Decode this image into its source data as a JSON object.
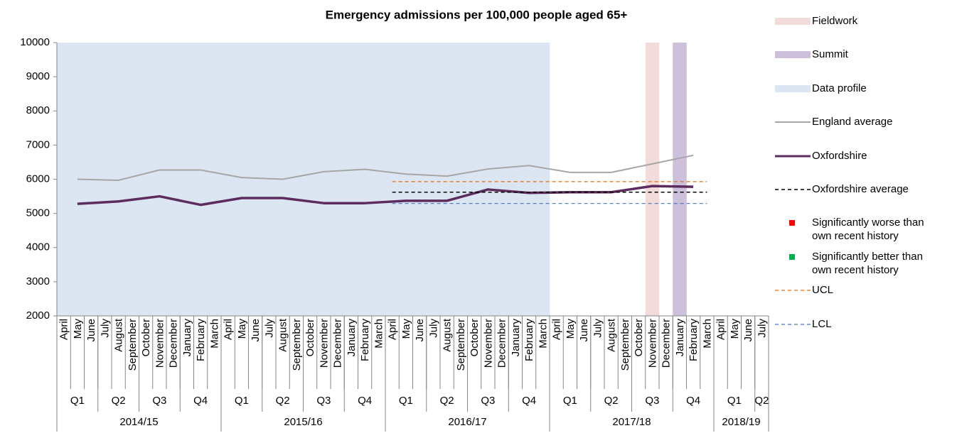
{
  "chart_data": {
    "type": "combo",
    "title": "Emergency admissions per 100,000 people aged 65+",
    "categories": [
      "April",
      "May",
      "June",
      "July",
      "August",
      "September",
      "October",
      "November",
      "December",
      "January",
      "February",
      "March",
      "April",
      "May",
      "June",
      "July",
      "August",
      "September",
      "October",
      "November",
      "December",
      "January",
      "February",
      "March",
      "April",
      "May",
      "June",
      "July",
      "August",
      "September",
      "October",
      "November",
      "December",
      "January",
      "February",
      "March",
      "April",
      "May",
      "June",
      "July",
      "August",
      "September",
      "October",
      "November",
      "December",
      "January",
      "February",
      "March",
      "April",
      "May",
      "June",
      "July"
    ],
    "x_groups": [
      {
        "span": 3,
        "labels": [
          "Q1",
          "Q2",
          "Q3",
          "Q4",
          "Q1",
          "Q2",
          "Q3",
          "Q4",
          "Q1",
          "Q2",
          "Q3",
          "Q4",
          "Q1",
          "Q2",
          "Q3",
          "Q4",
          "Q1",
          "Q2"
        ]
      },
      {
        "span": 12,
        "labels": [
          "2014/15",
          "2015/16",
          "2016/17",
          "2017/18",
          "2018/19"
        ]
      }
    ],
    "ylim": [
      2000,
      10000
    ],
    "yticks": [
      2000,
      3000,
      4000,
      5000,
      6000,
      7000,
      8000,
      9000,
      10000
    ],
    "grid": false,
    "connect_gaps": true,
    "legend": "right",
    "series": [
      {
        "name": "Fieldwork",
        "type": "bar",
        "color": "#f2dcdb",
        "values": [
          null,
          null,
          null,
          null,
          null,
          null,
          null,
          null,
          null,
          null,
          null,
          null,
          null,
          null,
          null,
          null,
          null,
          null,
          null,
          null,
          null,
          null,
          null,
          null,
          null,
          null,
          null,
          null,
          null,
          null,
          null,
          null,
          null,
          null,
          null,
          null,
          null,
          null,
          null,
          null,
          null,
          null,
          null,
          10000,
          null,
          null,
          null,
          null,
          null,
          null,
          null,
          null
        ]
      },
      {
        "name": "Summit",
        "type": "bar",
        "color": "#ccc0da",
        "values": [
          null,
          null,
          null,
          null,
          null,
          null,
          null,
          null,
          null,
          null,
          null,
          null,
          null,
          null,
          null,
          null,
          null,
          null,
          null,
          null,
          null,
          null,
          null,
          null,
          null,
          null,
          null,
          null,
          null,
          null,
          null,
          null,
          null,
          null,
          null,
          null,
          null,
          null,
          null,
          null,
          null,
          null,
          null,
          null,
          null,
          10000,
          null,
          null,
          null,
          null,
          null,
          null
        ]
      },
      {
        "name": "Data profile",
        "type": "bar",
        "color": "#dce6f2",
        "values": [
          10000,
          10000,
          10000,
          10000,
          10000,
          10000,
          10000,
          10000,
          10000,
          10000,
          10000,
          10000,
          10000,
          10000,
          10000,
          10000,
          10000,
          10000,
          10000,
          10000,
          10000,
          10000,
          10000,
          10000,
          10000,
          10000,
          10000,
          10000,
          10000,
          10000,
          10000,
          10000,
          10000,
          10000,
          10000,
          10000,
          null,
          null,
          null,
          null,
          null,
          null,
          null,
          null,
          null,
          null,
          null,
          null,
          null,
          null,
          null,
          null
        ]
      },
      {
        "name": "England average",
        "type": "line",
        "color": "#a6a6a6",
        "width": 2,
        "values": [
          null,
          6000,
          null,
          null,
          5970,
          null,
          null,
          6270,
          null,
          null,
          6270,
          null,
          null,
          6050,
          null,
          null,
          6000,
          null,
          null,
          6220,
          null,
          null,
          6290,
          null,
          null,
          6150,
          null,
          null,
          6090,
          null,
          null,
          6300,
          null,
          null,
          6400,
          null,
          null,
          6200,
          null,
          null,
          6200,
          null,
          null,
          6450,
          null,
          null,
          6700,
          null,
          null,
          null,
          null,
          null
        ]
      },
      {
        "name": "Oxfordshire",
        "type": "line",
        "color": "#5b2c5d",
        "width": 3.5,
        "values": [
          null,
          5280,
          null,
          null,
          5350,
          null,
          null,
          5500,
          null,
          null,
          5250,
          null,
          null,
          5450,
          null,
          null,
          5450,
          null,
          null,
          5300,
          null,
          null,
          5300,
          null,
          null,
          5370,
          null,
          null,
          5370,
          null,
          null,
          5700,
          null,
          null,
          5600,
          null,
          null,
          5620,
          null,
          null,
          5620,
          null,
          null,
          5800,
          null,
          null,
          5780,
          null,
          null,
          null,
          null,
          null
        ]
      },
      {
        "name": "Oxfordshire average",
        "type": "line",
        "color": "#000000",
        "width": 1.5,
        "dash": true,
        "values": [
          null,
          null,
          null,
          null,
          null,
          null,
          null,
          null,
          null,
          null,
          null,
          null,
          null,
          null,
          null,
          null,
          null,
          null,
          null,
          null,
          null,
          null,
          null,
          null,
          5620,
          5620,
          5620,
          5620,
          5620,
          5620,
          5620,
          5620,
          5620,
          5620,
          5620,
          5620,
          5620,
          5620,
          5620,
          5620,
          5620,
          5620,
          5620,
          5620,
          5620,
          5620,
          5620,
          5620,
          null,
          null,
          null,
          null
        ]
      },
      {
        "name": "UCL",
        "type": "line",
        "color": "#e46c0a",
        "width": 1.2,
        "dash": true,
        "values": [
          null,
          null,
          null,
          null,
          null,
          null,
          null,
          null,
          null,
          null,
          null,
          null,
          null,
          null,
          null,
          null,
          null,
          null,
          null,
          null,
          null,
          null,
          null,
          null,
          5930,
          5930,
          5930,
          5930,
          5930,
          5930,
          5930,
          5930,
          5930,
          5930,
          5930,
          5930,
          5930,
          5930,
          5930,
          5930,
          5930,
          5930,
          5930,
          5930,
          5930,
          5930,
          5930,
          5930,
          null,
          null,
          null,
          null
        ]
      },
      {
        "name": "LCL",
        "type": "line",
        "color": "#4472c4",
        "width": 1.2,
        "dash": true,
        "values": [
          null,
          null,
          null,
          null,
          null,
          null,
          null,
          null,
          null,
          null,
          null,
          null,
          null,
          null,
          null,
          null,
          null,
          null,
          null,
          null,
          null,
          null,
          null,
          null,
          5290,
          5290,
          5290,
          5290,
          5290,
          5290,
          5290,
          5290,
          5290,
          5290,
          5290,
          5290,
          5290,
          5290,
          5290,
          5290,
          5290,
          5290,
          5290,
          5290,
          5290,
          5290,
          5290,
          5290,
          null,
          null,
          null,
          null
        ]
      }
    ],
    "legend_markers": [
      {
        "name": "Significantly worse than own recent history",
        "color": "#ff0000"
      },
      {
        "name": "Significantly better than own recent history",
        "color": "#00b050"
      }
    ]
  }
}
